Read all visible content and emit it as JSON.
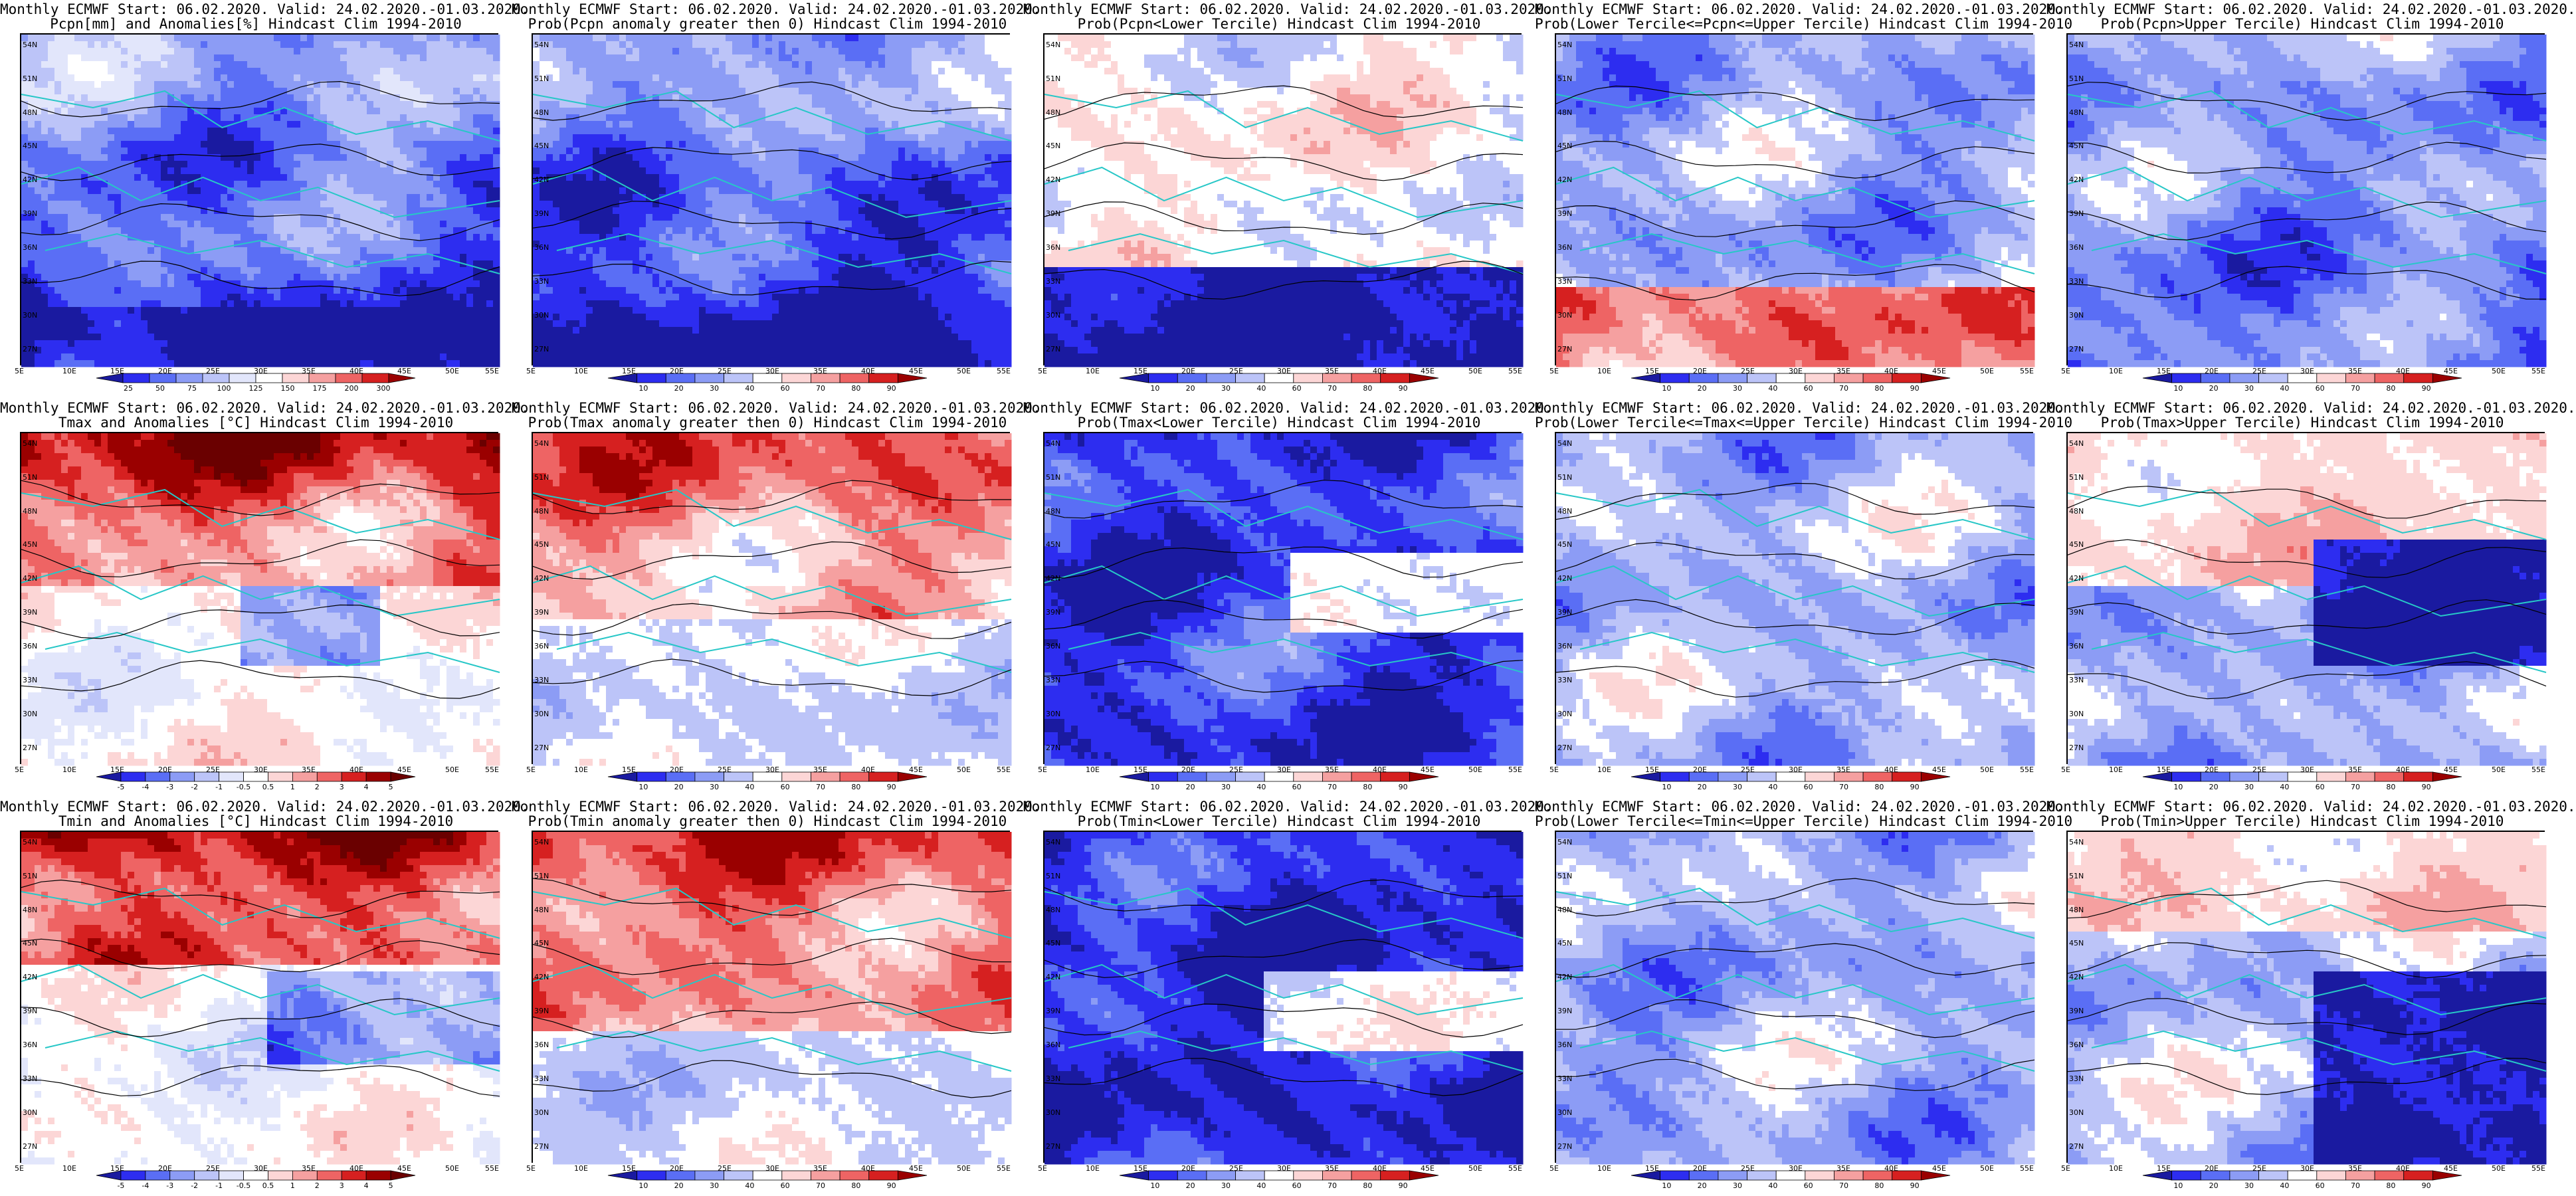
{
  "chart_data": {
    "type": "heatmap",
    "grid": "3x5 map panels",
    "lat_ticks": [
      "27N",
      "30N",
      "33N",
      "36N",
      "39N",
      "42N",
      "45N",
      "48N",
      "51N",
      "54N"
    ],
    "lon_ticks": [
      "5E",
      "10E",
      "15E",
      "20E",
      "25E",
      "30E",
      "35E",
      "40E",
      "45E",
      "50E",
      "55E"
    ],
    "xlim": [
      5,
      55
    ],
    "ylim": [
      25.5,
      55
    ],
    "panels": [
      {
        "title1": "Monthly ECMWF Start: 06.02.2020. Valid: 24.02.2020.-01.03.2020.",
        "title2": "Pcpn[mm] and Anomalies[%] Hindcast Clim 1994-2010",
        "scale": "pcpn",
        "field": "pcpn_anom"
      },
      {
        "title1": "Monthly ECMWF Start: 06.02.2020. Valid: 24.02.2020.-01.03.2020.",
        "title2": "Prob(Pcpn anomaly greater then 0) Hindcast Clim 1994-2010",
        "scale": "prob",
        "field": "pcpn_pos"
      },
      {
        "title1": "Monthly ECMWF Start: 06.02.2020. Valid: 24.02.2020.-01.03.2020.",
        "title2": "Prob(Pcpn<Lower Tercile) Hindcast Clim 1994-2010",
        "scale": "prob",
        "field": "pcpn_low"
      },
      {
        "title1": "Monthly ECMWF Start: 06.02.2020. Valid: 24.02.2020.-01.03.2020.",
        "title2": "Prob(Lower Tercile<=Pcpn<=Upper Tercile) Hindcast Clim 1994-2010",
        "scale": "prob",
        "field": "pcpn_mid"
      },
      {
        "title1": "Monthly ECMWF Start: 06.02.2020. Valid: 24.02.2020.-01.03.2020.",
        "title2": "Prob(Pcpn>Upper Tercile) Hindcast Clim 1994-2010",
        "scale": "prob",
        "field": "pcpn_up"
      },
      {
        "title1": "Monthly ECMWF Start: 06.02.2020. Valid: 24.02.2020.-01.03.2020.",
        "title2": "Tmax and Anomalies [°C] Hindcast Clim 1994-2010",
        "scale": "temp",
        "field": "tmax_anom"
      },
      {
        "title1": "Monthly ECMWF Start: 06.02.2020. Valid: 24.02.2020.-01.03.2020.",
        "title2": "Prob(Tmax anomaly greater then 0) Hindcast Clim 1994-2010",
        "scale": "prob",
        "field": "tmax_pos"
      },
      {
        "title1": "Monthly ECMWF Start: 06.02.2020. Valid: 24.02.2020.-01.03.2020.",
        "title2": "Prob(Tmax<Lower Tercile) Hindcast Clim 1994-2010",
        "scale": "prob",
        "field": "tmax_low"
      },
      {
        "title1": "Monthly ECMWF Start: 06.02.2020. Valid: 24.02.2020.-01.03.2020.",
        "title2": "Prob(Lower Tercile<=Tmax<=Upper Tercile) Hindcast Clim 1994-2010",
        "scale": "prob",
        "field": "tmax_mid"
      },
      {
        "title1": "Monthly ECMWF Start: 06.02.2020. Valid: 24.02.2020.-01.03.2020.",
        "title2": "Prob(Tmax>Upper Tercile) Hindcast Clim 1994-2010",
        "scale": "prob",
        "field": "tmax_up"
      },
      {
        "title1": "Monthly ECMWF Start: 06.02.2020. Valid: 24.02.2020.-01.03.2020.",
        "title2": "Tmin and Anomalies [°C] Hindcast Clim 1994-2010",
        "scale": "temp",
        "field": "tmin_anom"
      },
      {
        "title1": "Monthly ECMWF Start: 06.02.2020. Valid: 24.02.2020.-01.03.2020.",
        "title2": "Prob(Tmin anomaly greater then 0) Hindcast Clim 1994-2010",
        "scale": "prob",
        "field": "tmin_pos"
      },
      {
        "title1": "Monthly ECMWF Start: 06.02.2020. Valid: 24.02.2020.-01.03.2020.",
        "title2": "Prob(Tmin<Lower Tercile) Hindcast Clim 1994-2010",
        "scale": "prob",
        "field": "tmin_low"
      },
      {
        "title1": "Monthly ECMWF Start: 06.02.2020. Valid: 24.02.2020.-01.03.2020.",
        "title2": "Prob(Lower Tercile<=Tmin<=Upper Tercile) Hindcast Clim 1994-2010",
        "scale": "prob",
        "field": "tmin_mid"
      },
      {
        "title1": "Monthly ECMWF Start: 06.02.2020. Valid: 24.02.2020.-01.03.2020.",
        "title2": "Prob(Tmin>Upper Tercile) Hindcast Clim 1994-2010",
        "scale": "prob",
        "field": "tmin_up"
      }
    ],
    "colorbars": {
      "pcpn": {
        "labels": [
          "25",
          "50",
          "75",
          "100",
          "125",
          "150",
          "175",
          "200",
          "300"
        ],
        "colors": [
          "#1a1aa0",
          "#2d2df0",
          "#5a6ef5",
          "#8c9cf5",
          "#bcc4f8",
          "#e2e6fb",
          "#ffffff",
          "#fcd6d6",
          "#f5a0a0",
          "#ee6464",
          "#d62020",
          "#9a0000"
        ]
      },
      "prob": {
        "labels": [
          "10",
          "20",
          "30",
          "40",
          "60",
          "70",
          "80",
          "90"
        ],
        "colors": [
          "#1a1aa0",
          "#2d2df0",
          "#5a6ef5",
          "#8c9cf5",
          "#bcc4f8",
          "#ffffff",
          "#fcd6d6",
          "#f5a0a0",
          "#ee6464",
          "#d62020",
          "#9a0000"
        ]
      },
      "temp": {
        "labels": [
          "-5",
          "-4",
          "-3",
          "-2",
          "-1",
          "-0.5",
          "0.5",
          "1",
          "2",
          "3",
          "4",
          "5"
        ],
        "colors": [
          "#1a1aa0",
          "#2d2df0",
          "#5a6ef5",
          "#8c9cf5",
          "#bcc4f8",
          "#e2e6fb",
          "#ffffff",
          "#fcd6d6",
          "#f5a0a0",
          "#ee6464",
          "#d62020",
          "#9a0000",
          "#6a0000"
        ]
      }
    },
    "colors": {
      "coastline": "#27c7c7",
      "contour": "#000000"
    }
  }
}
